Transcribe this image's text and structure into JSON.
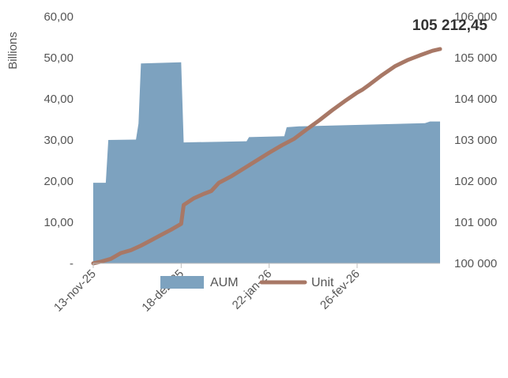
{
  "chart_data": {
    "type": "area+line",
    "y_left_label": "Billions",
    "y_left_ticks": [
      "-",
      "10,00",
      "20,00",
      "30,00",
      "40,00",
      "50,00",
      "60,00"
    ],
    "y_left_range": [
      0,
      60
    ],
    "y_right_ticks": [
      "100 000",
      "101 000",
      "102 000",
      "103 000",
      "104 000",
      "105 000",
      "106 000"
    ],
    "y_right_range": [
      100000,
      106000
    ],
    "x_ticks": [
      {
        "label": "13-nov-25",
        "day": 0
      },
      {
        "label": "18-dez-25",
        "day": 35
      },
      {
        "label": "22-jan-26",
        "day": 70
      },
      {
        "label": "26-fev-26",
        "day": 105
      }
    ],
    "x_range_days": [
      0,
      138
    ],
    "annotation": "105 212,45",
    "legend": {
      "position": "bottom",
      "entries": [
        {
          "name": "AUM",
          "color": "#7da2bf",
          "kind": "area"
        },
        {
          "name": "Unit",
          "color": "#a87866",
          "kind": "line"
        }
      ]
    },
    "series": [
      {
        "name": "AUM",
        "axis": "left",
        "points": [
          [
            0,
            19.6
          ],
          [
            5,
            19.6
          ],
          [
            6,
            30.0
          ],
          [
            17,
            30.1
          ],
          [
            18,
            34.0
          ],
          [
            19,
            48.6
          ],
          [
            35,
            48.9
          ],
          [
            36,
            29.4
          ],
          [
            61,
            29.7
          ],
          [
            62,
            30.7
          ],
          [
            76,
            30.9
          ],
          [
            77,
            33.1
          ],
          [
            82,
            33.3
          ],
          [
            132,
            34.1
          ],
          [
            134,
            34.5
          ],
          [
            138,
            34.5
          ]
        ]
      },
      {
        "name": "Unit",
        "axis": "right",
        "points": [
          [
            0,
            100000
          ],
          [
            3,
            100040
          ],
          [
            7,
            100110
          ],
          [
            11,
            100250
          ],
          [
            15,
            100320
          ],
          [
            19,
            100430
          ],
          [
            23,
            100560
          ],
          [
            27,
            100690
          ],
          [
            31,
            100820
          ],
          [
            35,
            100960
          ],
          [
            36,
            101420
          ],
          [
            40,
            101580
          ],
          [
            44,
            101690
          ],
          [
            47,
            101760
          ],
          [
            50,
            101960
          ],
          [
            55,
            102120
          ],
          [
            60,
            102310
          ],
          [
            65,
            102500
          ],
          [
            70,
            102690
          ],
          [
            75,
            102870
          ],
          [
            80,
            103030
          ],
          [
            85,
            103260
          ],
          [
            90,
            103480
          ],
          [
            95,
            103720
          ],
          [
            100,
            103940
          ],
          [
            105,
            104150
          ],
          [
            107,
            104220
          ],
          [
            110,
            104350
          ],
          [
            115,
            104580
          ],
          [
            120,
            104790
          ],
          [
            125,
            104940
          ],
          [
            130,
            105060
          ],
          [
            135,
            105170
          ],
          [
            138,
            105212.45
          ]
        ]
      }
    ]
  }
}
